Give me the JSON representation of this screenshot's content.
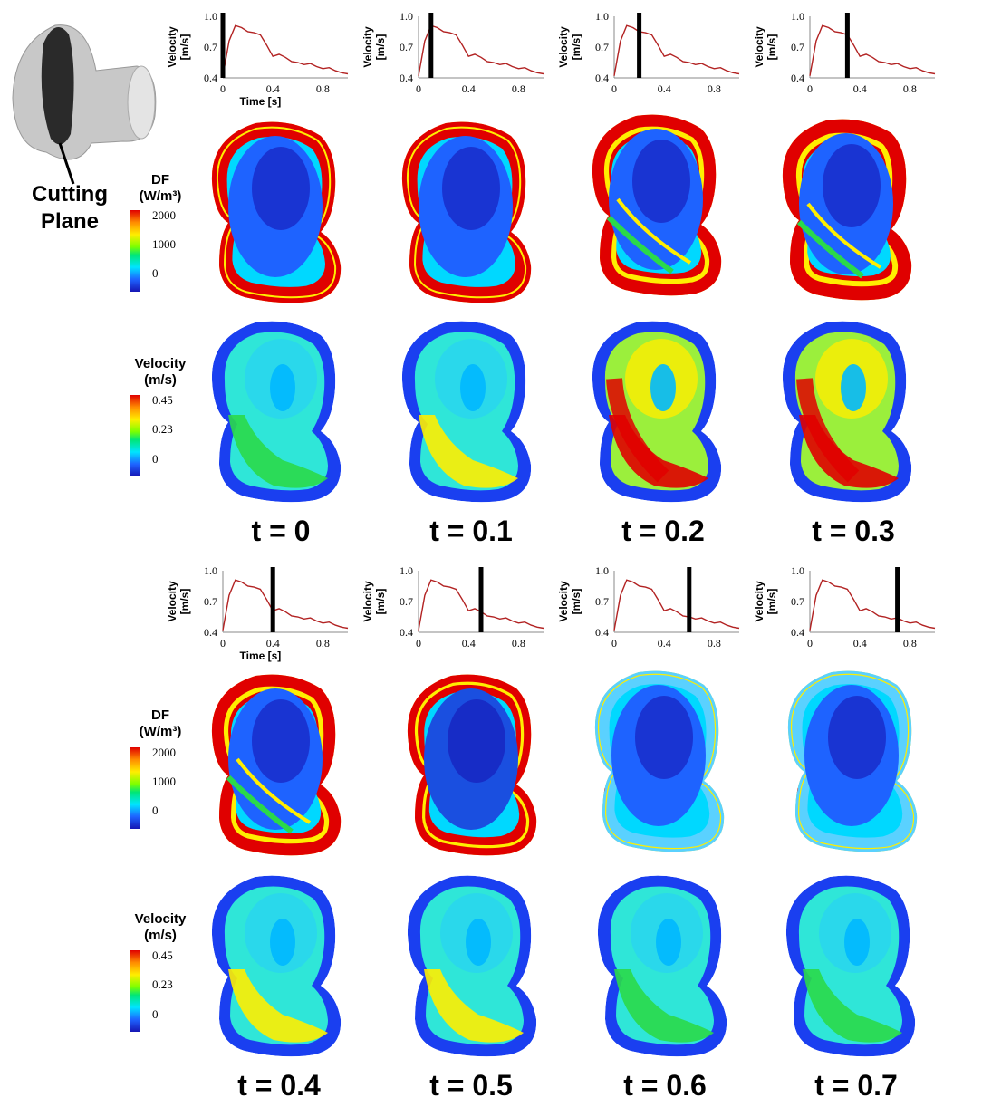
{
  "cutting_plane_label": "Cutting Plane",
  "df_legend": {
    "title": "DF",
    "unit": "(W/m³)",
    "ticks": [
      "2000",
      "1000",
      "0"
    ]
  },
  "velocity_legend": {
    "title": "Velocity",
    "unit": "(m/s)",
    "ticks": [
      "0.45",
      "0.23",
      "0"
    ]
  },
  "waveform": {
    "ylabel": "Velocity",
    "yunit": "[m/s]",
    "xlabel": "Time [s]",
    "yticks": [
      "1.0",
      "0.7",
      "0.4"
    ],
    "xticks": [
      "0",
      "0.4",
      "0.8"
    ],
    "trace_color": "#b22222"
  },
  "chart_data": {
    "type": "line",
    "xlabel": "Time [s]",
    "ylabel": "Velocity [m/s]",
    "xlim": [
      0,
      1.0
    ],
    "ylim": [
      0.4,
      1.0
    ],
    "x": [
      0,
      0.05,
      0.1,
      0.15,
      0.2,
      0.25,
      0.3,
      0.35,
      0.4,
      0.45,
      0.5,
      0.55,
      0.6,
      0.65,
      0.7,
      0.75,
      0.8,
      0.85,
      0.9,
      0.95,
      1.0
    ],
    "series": [
      {
        "values": [
          0.42,
          0.76,
          0.91,
          0.89,
          0.85,
          0.84,
          0.82,
          0.72,
          0.61,
          0.63,
          0.6,
          0.56,
          0.55,
          0.53,
          0.54,
          0.51,
          0.49,
          0.5,
          0.47,
          0.45,
          0.44
        ]
      }
    ]
  },
  "time_points": [
    {
      "label": "t = 0",
      "marker": 0.0
    },
    {
      "label": "t = 0.1",
      "marker": 0.1
    },
    {
      "label": "t = 0.2",
      "marker": 0.2
    },
    {
      "label": "t = 0.3",
      "marker": 0.3
    },
    {
      "label": "t = 0.4",
      "marker": 0.4
    },
    {
      "label": "t = 0.5",
      "marker": 0.5
    },
    {
      "label": "t = 0.6",
      "marker": 0.6
    },
    {
      "label": "t = 0.7",
      "marker": 0.7
    }
  ],
  "colors": {
    "red": "#e00000",
    "yellow": "#ffee00",
    "green": "#2bd94a",
    "cyan": "#00e5ff",
    "blue": "#1e63ff",
    "darkblue": "#1616b4"
  }
}
